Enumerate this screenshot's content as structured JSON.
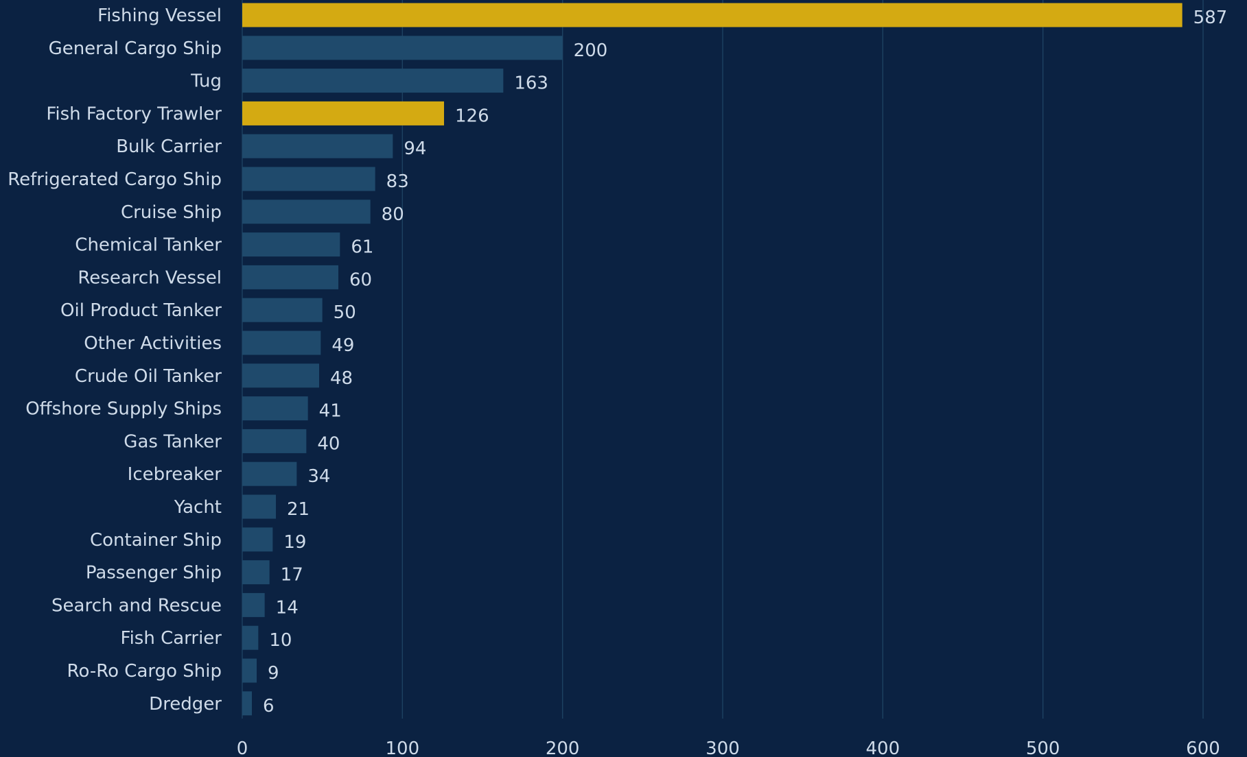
{
  "chart_data": {
    "type": "bar",
    "orientation": "horizontal",
    "categories": [
      "Fishing Vessel",
      "General Cargo Ship",
      "Tug",
      "Fish Factory Trawler",
      "Bulk Carrier",
      "Refrigerated Cargo Ship",
      "Cruise Ship",
      "Chemical Tanker",
      "Research Vessel",
      "Oil Product Tanker",
      "Other Activities",
      "Crude Oil Tanker",
      "Offshore Supply Ships",
      "Gas Tanker",
      "Icebreaker",
      "Yacht",
      "Container Ship",
      "Passenger Ship",
      "Search and Rescue",
      "Fish Carrier",
      "Ro-Ro Cargo Ship",
      "Dredger"
    ],
    "values": [
      587,
      200,
      163,
      126,
      94,
      83,
      80,
      61,
      60,
      50,
      49,
      48,
      41,
      40,
      34,
      21,
      19,
      17,
      14,
      10,
      9,
      6
    ],
    "highlighted": [
      "Fishing Vessel",
      "Fish Factory Trawler"
    ],
    "xlim": [
      0,
      600
    ],
    "xticks": [
      0,
      100,
      200,
      300,
      400,
      500,
      600
    ],
    "title": "",
    "xlabel": "",
    "ylabel": "",
    "grid": "vertical",
    "legend": "none",
    "colors": {
      "background": "#0b2242",
      "bar": "#1f4a6c",
      "highlight": "#d4aa12",
      "grid": "#1d4262",
      "text": "#cfdbe9"
    }
  }
}
